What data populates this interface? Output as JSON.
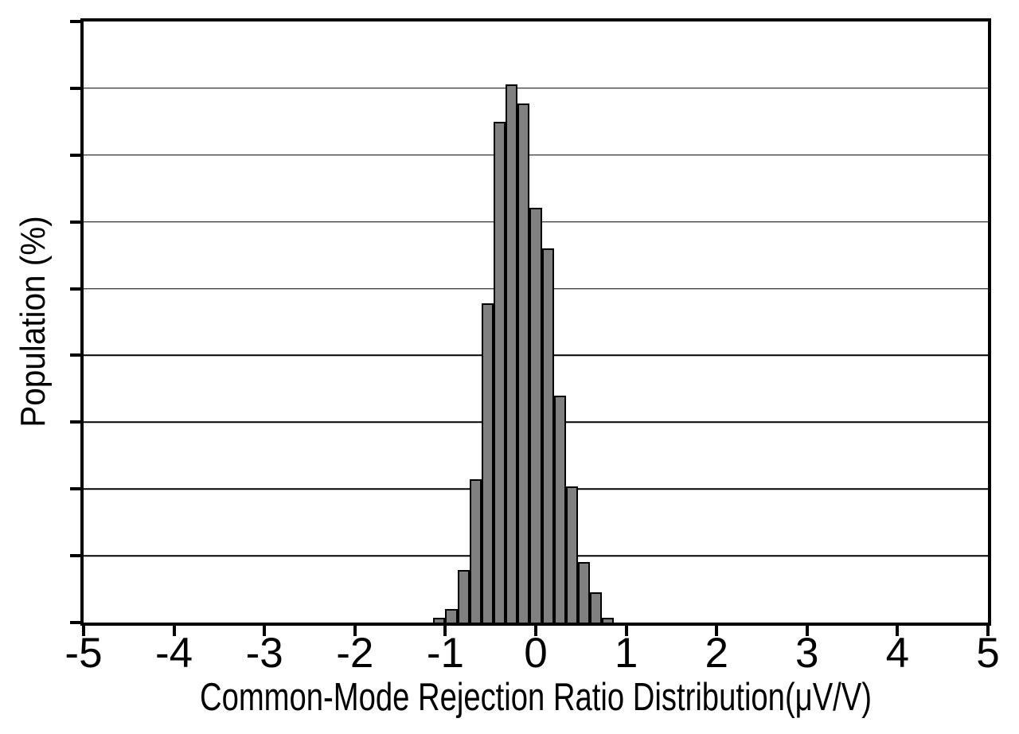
{
  "figure": {
    "x_axis_title": "Common-Mode Rejection Ratio Distribution(μV/V)",
    "y_axis_title": "Population (%)",
    "x_tick_labels": [
      "-5",
      "-4",
      "-3",
      "-2",
      "-1",
      "0",
      "1",
      "2",
      "3",
      "4",
      "5"
    ]
  },
  "colors": {
    "background": "#ffffff",
    "bar_fill": "#808080",
    "line": "#000000"
  },
  "chart_data": {
    "type": "bar",
    "subtype": "histogram",
    "title": "",
    "xlabel": "Common-Mode Rejection Ratio Distribution(μV/V)",
    "ylabel": "Population (%)",
    "xlim": [
      -5,
      5
    ],
    "x_tick_values": [
      -5,
      -4,
      -3,
      -2,
      -1,
      0,
      1,
      2,
      3,
      4,
      5
    ],
    "y_axis": {
      "labels_shown": false,
      "divisions": 9,
      "note": "y axis has tick marks and horizontal gridlines at 9 equal divisions but no numeric labels"
    },
    "grid": "horizontal",
    "legend": "none",
    "bin_width": 0.1333,
    "bars": [
      {
        "x_left": -1.133,
        "x_center": -1.067,
        "height_frac": 0.008,
        "height_divisions": 0.07
      },
      {
        "x_left": -1.0,
        "x_center": -0.933,
        "height_frac": 0.022,
        "height_divisions": 0.2
      },
      {
        "x_left": -0.867,
        "x_center": -0.8,
        "height_frac": 0.088,
        "height_divisions": 0.79
      },
      {
        "x_left": -0.733,
        "x_center": -0.667,
        "height_frac": 0.238,
        "height_divisions": 2.15
      },
      {
        "x_left": -0.6,
        "x_center": -0.533,
        "height_frac": 0.531,
        "height_divisions": 4.78
      },
      {
        "x_left": -0.467,
        "x_center": -0.4,
        "height_frac": 0.833,
        "height_divisions": 7.49
      },
      {
        "x_left": -0.333,
        "x_center": -0.267,
        "height_frac": 0.895,
        "height_divisions": 8.05
      },
      {
        "x_left": -0.2,
        "x_center": -0.133,
        "height_frac": 0.864,
        "height_divisions": 7.78
      },
      {
        "x_left": -0.067,
        "x_center": 0.0,
        "height_frac": 0.69,
        "height_divisions": 6.21
      },
      {
        "x_left": 0.067,
        "x_center": 0.133,
        "height_frac": 0.622,
        "height_divisions": 5.6
      },
      {
        "x_left": 0.2,
        "x_center": 0.267,
        "height_frac": 0.377,
        "height_divisions": 3.39
      },
      {
        "x_left": 0.333,
        "x_center": 0.4,
        "height_frac": 0.227,
        "height_divisions": 2.04
      },
      {
        "x_left": 0.467,
        "x_center": 0.533,
        "height_frac": 0.101,
        "height_divisions": 0.91
      },
      {
        "x_left": 0.6,
        "x_center": 0.667,
        "height_frac": 0.05,
        "height_divisions": 0.45
      },
      {
        "x_left": 0.733,
        "x_center": 0.8,
        "height_frac": 0.008,
        "height_divisions": 0.07
      }
    ]
  }
}
